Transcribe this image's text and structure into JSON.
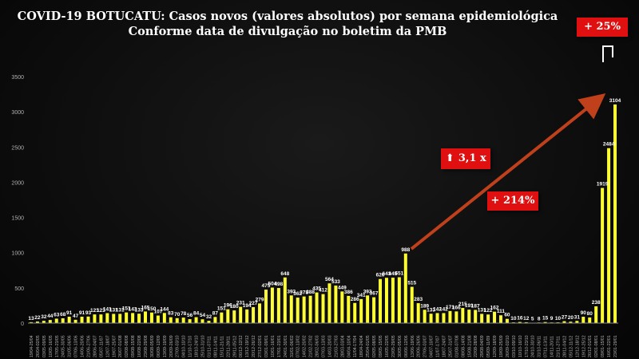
{
  "title_line1": "COVID-19 BOTUCATU: Casos novos (valores absolutos) por semana epidemiológica",
  "title_line2": "Conforme data de divulgação no boletim da PMB",
  "annotations": {
    "pct_25": "+ 25%",
    "pct_214": "+ 214%",
    "times_31": "3,1 x"
  },
  "colors": {
    "bar": "#ffff33",
    "axis": "#b0b0b0",
    "annotation_bg": "#e01010",
    "trend_arrow": "#c0401c"
  },
  "chart_data": {
    "type": "bar",
    "title": "COVID-19 BOTUCATU: Casos novos (valores absolutos) por semana epidemiológica",
    "ylim": [
      0,
      3500
    ],
    "yticks": [
      "0",
      "500",
      "1000",
      "1500",
      "2000",
      "2500",
      "3000",
      "3500"
    ],
    "grid": false,
    "categories": [
      "19/04-25/04",
      "26/04-02/05",
      "03/05-09/05",
      "10/05-16/05",
      "17/05-23/05",
      "24/05-30/05",
      "31/05-06/06",
      "07/06-13/06",
      "14/06-20/06",
      "21/06-27/06",
      "28/06-04/07",
      "05/07-11/07",
      "12/07-18/07",
      "19/07-25/07",
      "26/07-01/08",
      "02/08-08/08",
      "09/08-15/08",
      "16/08-22/08",
      "23/08-29/08",
      "30/08-05/09",
      "06/09-12/09",
      "13/09-19/09",
      "20/09-26/09",
      "27/09-03/10",
      "04/10-10/10",
      "11/10-17/10",
      "18/10-24/10",
      "25/10-31/10",
      "01/11-07/11",
      "08/11-14/11",
      "15/11-21/11",
      "22/11-28/11",
      "29/11-05/12",
      "06/12-12/12",
      "13/12-19/12",
      "20/12-26/12",
      "27/12-02/01",
      "03/01-09/01",
      "10/01-16/01",
      "17/01-23/01",
      "24/01-30/01",
      "31/01-06/02",
      "07/02-13/02",
      "14/02-20/02",
      "21/02-27/02",
      "28/02-06/03",
      "07/03-13/03",
      "14/03-20/03",
      "21/03-27/03",
      "28/03-03/04",
      "04/04-10/04",
      "11/04-17/04",
      "18/04-24/04",
      "25/04-01/05",
      "02/05-08/05",
      "09/05-15/05",
      "16/05-22/05",
      "23/05-29/05",
      "30/05-05/06",
      "06/06-12/06",
      "13/06-19/06",
      "20/06-26/06",
      "27/06-03/07",
      "04/07-10/07",
      "11/07-17/07",
      "18/07-24/07",
      "25/07-31/07",
      "01/08-07/08",
      "08/08-14/08",
      "15/08-21/08",
      "22/08-28/08",
      "29/08-04/09",
      "05/09-11/09",
      "12/09-18/09",
      "19/09-25/09",
      "26/09-02/10",
      "03/10-09/10",
      "10/10-16/10",
      "17/10-23/10",
      "24/10-30/10",
      "31/10-06/11",
      "07/11-13/11",
      "14/11-20/11",
      "21/11-27/11",
      "28/11-04/12",
      "05/12-11/12",
      "12/12-18/12",
      "19/12-25/12",
      "26/12-01/01",
      "02/01-08/01",
      "09/01-15/01",
      "16/01-22/01",
      "23/01-29/01"
    ],
    "values": [
      13,
      22,
      32,
      44,
      63,
      68,
      91,
      47,
      91,
      93,
      123,
      123,
      141,
      131,
      131,
      151,
      143,
      133,
      165,
      150,
      107,
      144,
      83,
      70,
      78,
      56,
      84,
      54,
      32,
      87,
      151,
      196,
      180,
      231,
      194,
      227,
      279,
      475,
      504,
      498,
      648,
      393,
      362,
      378,
      388,
      435,
      412,
      564,
      533,
      449,
      386,
      286,
      341,
      393,
      367,
      626,
      643,
      645,
      651,
      988,
      515,
      283,
      189,
      133,
      142,
      142,
      171,
      166,
      215,
      191,
      187,
      131,
      122,
      162,
      111,
      60,
      10,
      16,
      12,
      5,
      8,
      15,
      9,
      10,
      27,
      20,
      31,
      90,
      80,
      238,
      1919,
      2484,
      3104
    ],
    "labels": [
      "13",
      "22",
      "32",
      "44",
      "63",
      "68",
      "91",
      "47",
      "91",
      "93",
      "123",
      "123",
      "141",
      "131",
      "131",
      "151",
      "143",
      "133",
      "165",
      "150",
      "107",
      "144",
      "83",
      "70",
      "78",
      "56",
      "84",
      "54",
      "32",
      "87",
      "151",
      "196",
      "180",
      "231",
      "194",
      "227",
      "279",
      "475",
      "504",
      "498",
      "648",
      "393",
      "362",
      "378",
      "388",
      "435",
      "412",
      "564",
      "533",
      "449",
      "386",
      "286",
      "341",
      "393",
      "367",
      "626",
      "643",
      "645",
      "651",
      "988",
      "515",
      "283",
      "189",
      "133",
      "142",
      "142",
      "171",
      "166",
      "215",
      "191",
      "187",
      "131",
      "122",
      "162",
      "111",
      "60",
      "10",
      "16",
      "12",
      "5",
      "8",
      "15",
      "9",
      "10",
      "27",
      "20",
      "31",
      "90",
      "80",
      "238",
      "1919",
      "2484",
      "3104"
    ]
  }
}
